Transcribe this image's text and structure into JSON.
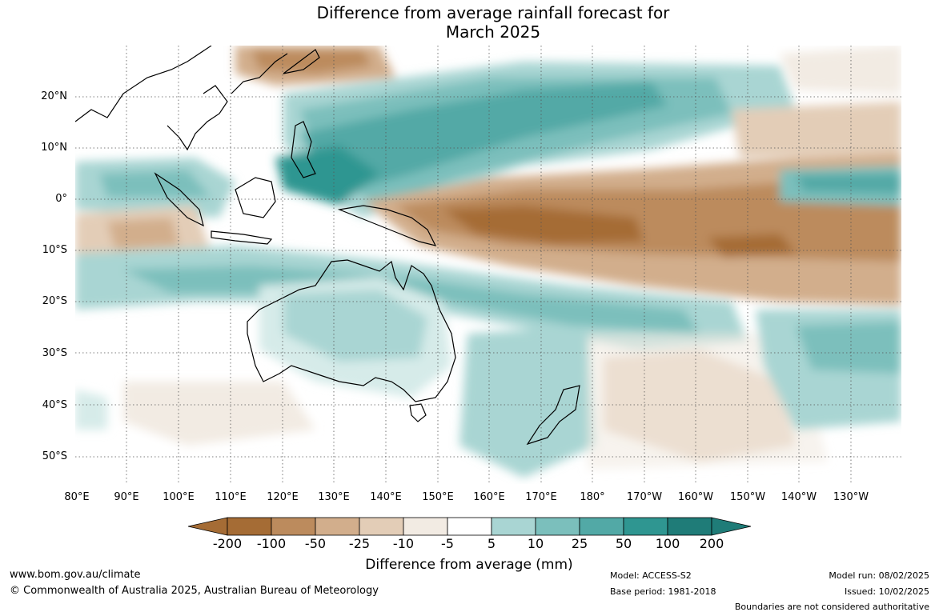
{
  "title_line1": "Difference from average rainfall forecast for",
  "title_line2": "March 2025",
  "lat_labels": [
    "20°N",
    "10°N",
    "0°",
    "10°S",
    "20°S",
    "30°S",
    "40°S",
    "50°S"
  ],
  "lon_labels": [
    "80°E",
    "90°E",
    "100°E",
    "110°E",
    "120°E",
    "130°E",
    "140°E",
    "150°E",
    "160°E",
    "170°E",
    "180°",
    "170°W",
    "160°W",
    "150°W",
    "140°W",
    "130°W"
  ],
  "colorbar": {
    "ticks": [
      "-200",
      "-100",
      "-50",
      "-25",
      "-10",
      "-5",
      "5",
      "10",
      "25",
      "50",
      "100",
      "200"
    ],
    "colors": [
      "#a56c35",
      "#bc8b5d",
      "#d2ae8c",
      "#e3cdb7",
      "#f2ebe3",
      "#ffffff",
      "#d6ebe9",
      "#a9d5d3",
      "#7bbfbc",
      "#52a9a6",
      "#2f9691",
      "#1f7c78"
    ],
    "label": "Difference from average (mm)"
  },
  "footer": {
    "website": "www.bom.gov.au/climate",
    "copyright": "© Commonwealth of Australia 2025, Australian Bureau of Meteorology",
    "model": "Model: ACCESS-S2",
    "base_period": "Base period: 1981-2018",
    "model_run": "Model run: 08/02/2025",
    "issued": "Issued: 10/02/2025",
    "disclaimer": "Boundaries are not considered authoritative"
  }
}
